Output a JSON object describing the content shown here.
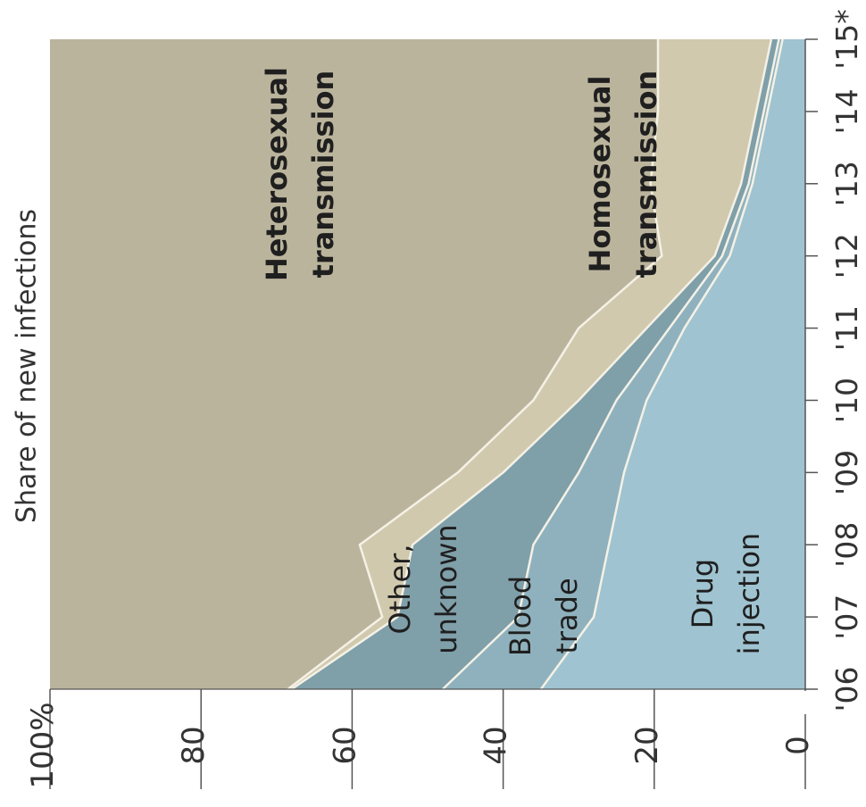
{
  "chart_data": {
    "type": "area",
    "stacked": true,
    "percent_stacked": true,
    "orientation": "rotated-90-ccw",
    "title": "Share of new infections",
    "x": [
      "'06",
      "'07",
      "'08",
      "'09",
      "'10",
      "'11",
      "'12",
      "'13",
      "'14",
      "'15*"
    ],
    "ylim": [
      0,
      100
    ],
    "y_ticks": [
      "0",
      "20",
      "40",
      "60",
      "80",
      "100%"
    ],
    "grid": false,
    "series": [
      {
        "name": "Drug injection",
        "label_lines": [
          "Drug",
          "injection"
        ],
        "bold": false,
        "color": "#9fc3d0",
        "values": [
          35,
          28,
          26,
          24,
          21,
          16,
          10,
          7,
          5,
          3
        ]
      },
      {
        "name": "Blood trade",
        "label_lines": [
          "Blood",
          "trade"
        ],
        "bold": false,
        "color": "#8fb1bd",
        "values": [
          13,
          10,
          10,
          6,
          4,
          2,
          1,
          0.5,
          0.5,
          0.5
        ]
      },
      {
        "name": "Other, unknown",
        "label_lines": [
          "Other,",
          "unknown"
        ],
        "bold": false,
        "color": "#7f9fa9",
        "values": [
          20,
          16,
          16,
          10,
          5,
          3,
          1,
          1,
          1,
          1
        ]
      },
      {
        "name": "Homosexual transmission",
        "label_lines": [
          "Homosexual",
          "transmission"
        ],
        "bold": true,
        "color": "#d1c9ae",
        "values": [
          0.5,
          2,
          7,
          6,
          6,
          9,
          7,
          12,
          13,
          15
        ]
      },
      {
        "name": "Heterosexual transmission",
        "label_lines": [
          "Heterosexual",
          "transmission"
        ],
        "bold": true,
        "color": "#bbb49c",
        "values": [
          31.5,
          44,
          41,
          54,
          64,
          70,
          81,
          79.5,
          80.5,
          80.5
        ]
      }
    ]
  }
}
